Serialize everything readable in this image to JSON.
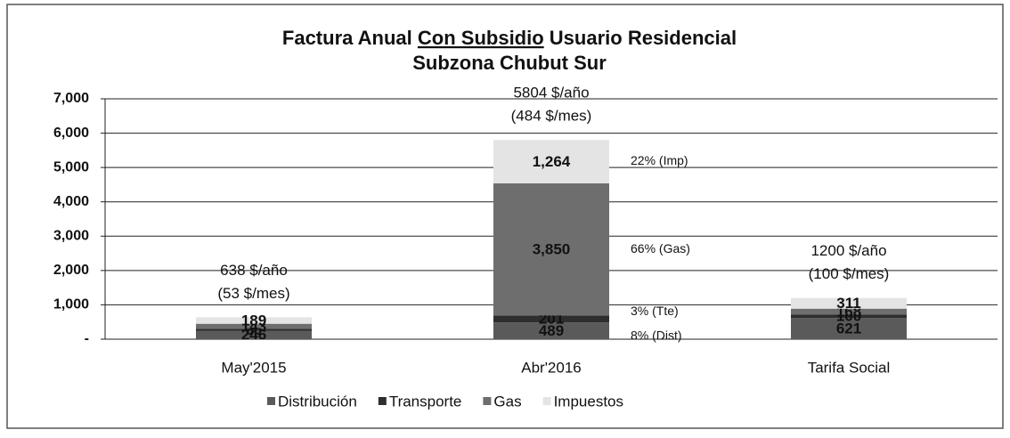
{
  "chart_data": {
    "type": "stacked_bar",
    "title_parts": [
      "Factura Anual",
      "Con Subsidio",
      "Usuario Residencial"
    ],
    "subtitle": "Subzona Chubut Sur",
    "categories": [
      "May'2015",
      "Abr'2016",
      "Tarifa Social"
    ],
    "series": [
      {
        "name": "Distribución",
        "color": "#5a5a5a",
        "values": [
          246,
          489,
          621
        ]
      },
      {
        "name": "Transporte",
        "color": "#2e2e2e",
        "values": [
          60,
          201,
          100
        ]
      },
      {
        "name": "Gas",
        "color": "#6e6e6e",
        "values": [
          143,
          3850,
          168
        ],
        "value_labels": [
          "143",
          "3,850",
          "168"
        ]
      },
      {
        "name": "Impuestos",
        "color": "#e4e4e4",
        "values": [
          189,
          1264,
          311
        ],
        "value_labels": [
          "189",
          "1,264",
          "311"
        ]
      }
    ],
    "total_labels": [
      [
        "638 $/año",
        "(53 $/mes)"
      ],
      [
        "5804 $/año",
        "(484 $/mes)"
      ],
      [
        "1200 $/año",
        "(100 $/mes)"
      ]
    ],
    "share_labels": [
      "8% (Dist)",
      "3% (Tte)",
      "66% (Gas)",
      "22% (Imp)"
    ],
    "ylim": [
      0,
      7000
    ],
    "yticks": [
      {
        "value": 0,
        "label": "-"
      },
      {
        "value": 1000,
        "label": "1,000"
      },
      {
        "value": 2000,
        "label": "2,000"
      },
      {
        "value": 3000,
        "label": "3,000"
      },
      {
        "value": 4000,
        "label": "4,000"
      },
      {
        "value": 5000,
        "label": "5,000"
      },
      {
        "value": 6000,
        "label": "6,000"
      },
      {
        "value": 7000,
        "label": "7,000"
      }
    ],
    "grid": true,
    "legend": "bottom"
  }
}
